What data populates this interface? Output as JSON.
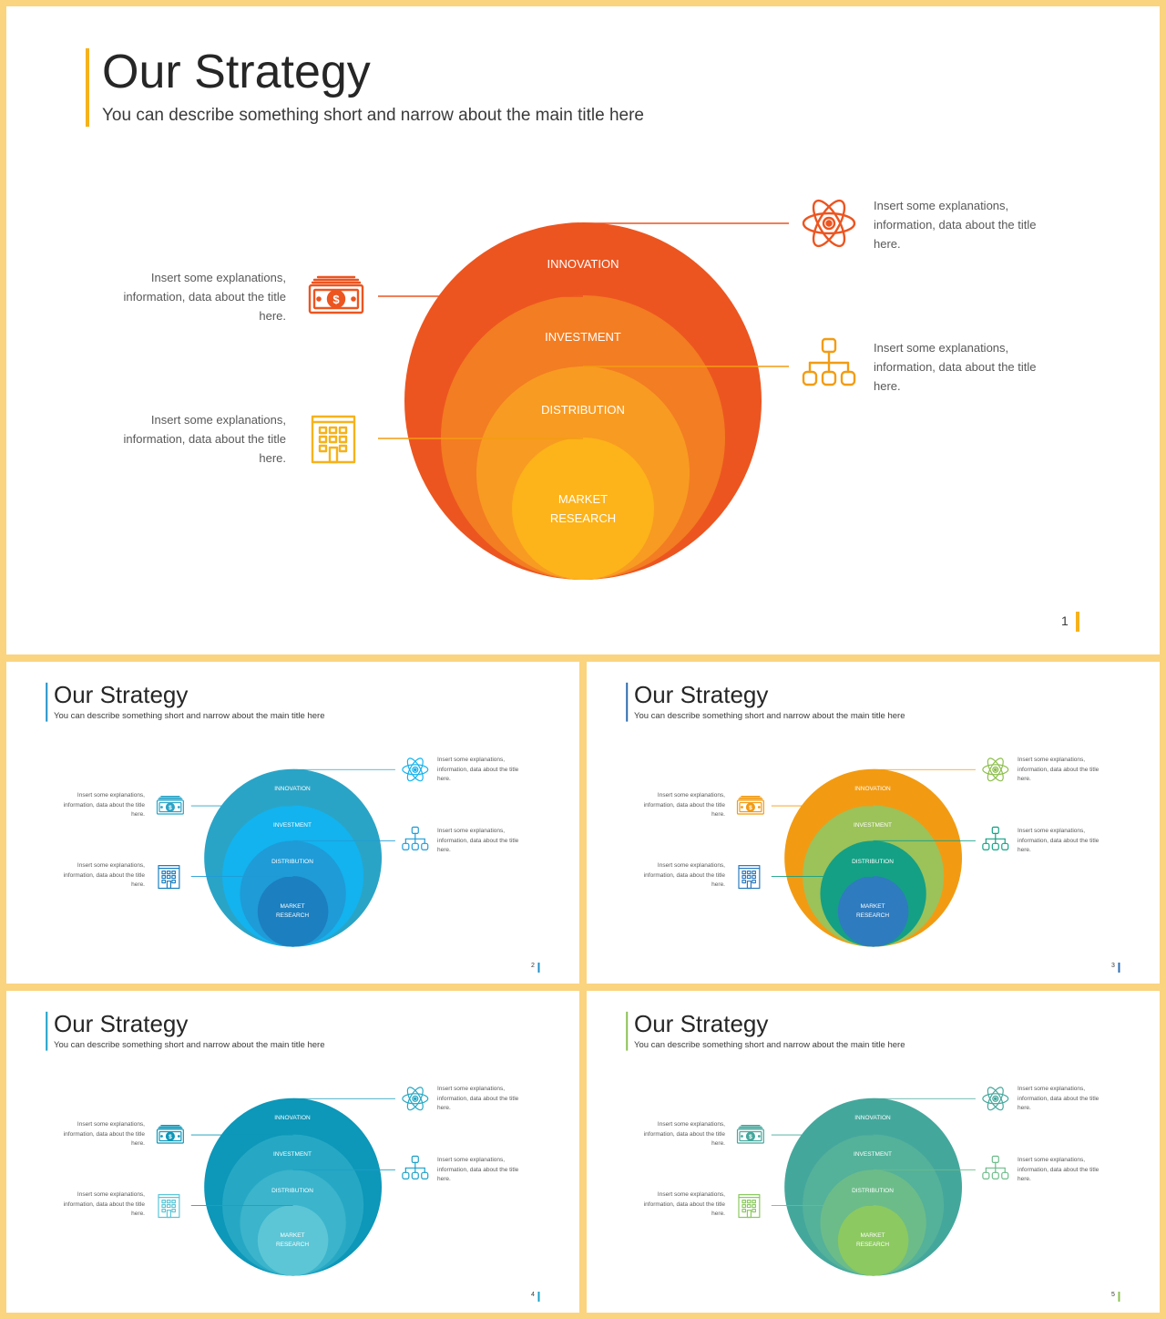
{
  "title": "Our Strategy",
  "subtitle": "You can describe something short and narrow about the main title here",
  "description": "Insert some explanations, information, data about the title here.",
  "layers": [
    "INNOVATION",
    "INVESTMENT",
    "DISTRIBUTION",
    "MARKET RESEARCH"
  ],
  "slides": [
    {
      "page": "1",
      "accent": "#f6b21c",
      "circles": [
        "#ec5520",
        "#f37d22",
        "#f89b22",
        "#fdb31a"
      ],
      "icons": [
        "#ec5520",
        "#ec5520",
        "#f39c12",
        "#f6b21c"
      ]
    },
    {
      "page": "2",
      "accent": "#1f8fc9",
      "circles": [
        "#2aa4c6",
        "#12b3ef",
        "#1f9bd7",
        "#1c7fbf"
      ],
      "icons": [
        "#2aa4c6",
        "#12b3ef",
        "#1f9bd7",
        "#1c7fbf"
      ]
    },
    {
      "page": "3",
      "accent": "#2b6cb0",
      "circles": [
        "#f29b12",
        "#9cc25a",
        "#14a085",
        "#2e7bbf"
      ],
      "icons": [
        "#f29b12",
        "#8cbf4a",
        "#14a085",
        "#2e7bbf"
      ]
    },
    {
      "page": "4",
      "accent": "#1aa0c8",
      "circles": [
        "#0d97b9",
        "#26a8c4",
        "#3bb4cc",
        "#5cc6d6"
      ],
      "icons": [
        "#0d97b9",
        "#26a8c4",
        "#1aa0c8",
        "#5cc6d6"
      ]
    },
    {
      "page": "5",
      "accent": "#8cc152",
      "circles": [
        "#44a79c",
        "#54b19a",
        "#6cbc8a",
        "#8cc960"
      ],
      "icons": [
        "#44a79c",
        "#44a79c",
        "#6cbc8a",
        "#8cc960"
      ]
    }
  ]
}
